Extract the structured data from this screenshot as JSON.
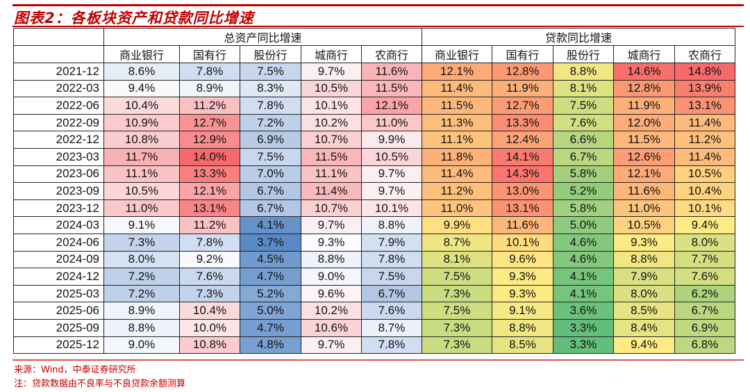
{
  "title": "图表2：各板块资产和贷款同比增速",
  "chart_data": {
    "type": "table",
    "title": "图表2：各板块资产和贷款同比增速",
    "groups": [
      "总资产同比增速",
      "贷款同比增速"
    ],
    "columns": [
      "商业银行",
      "国有行",
      "股份行",
      "城商行",
      "农商行"
    ],
    "rows": [
      "2021-12",
      "2022-03",
      "2022-06",
      "2022-09",
      "2022-12",
      "2023-03",
      "2023-06",
      "2023-09",
      "2023-12",
      "2024-03",
      "2024-06",
      "2024-09",
      "2024-12",
      "2025-03",
      "2025-06",
      "2025-09",
      "2025-12"
    ],
    "assets": [
      [
        8.6,
        7.8,
        7.5,
        9.7,
        11.6
      ],
      [
        9.4,
        8.9,
        8.3,
        10.5,
        11.5
      ],
      [
        10.4,
        11.2,
        7.8,
        10.1,
        12.1
      ],
      [
        10.9,
        12.7,
        7.2,
        10.2,
        11.0
      ],
      [
        10.8,
        12.9,
        6.9,
        10.7,
        9.9
      ],
      [
        11.7,
        14.0,
        7.5,
        11.5,
        10.5
      ],
      [
        11.1,
        13.3,
        7.0,
        11.1,
        9.7
      ],
      [
        10.5,
        12.1,
        6.7,
        11.4,
        9.7
      ],
      [
        11.0,
        13.1,
        6.7,
        10.7,
        10.1
      ],
      [
        9.1,
        11.2,
        4.1,
        9.7,
        8.8
      ],
      [
        7.3,
        7.8,
        3.7,
        9.3,
        7.9
      ],
      [
        8.0,
        9.2,
        4.5,
        8.8,
        7.8
      ],
      [
        7.2,
        7.6,
        4.7,
        9.0,
        7.5
      ],
      [
        7.2,
        7.3,
        5.2,
        9.6,
        6.7
      ],
      [
        8.9,
        10.4,
        5.0,
        10.2,
        7.6
      ],
      [
        8.8,
        10.0,
        4.7,
        10.6,
        8.7
      ],
      [
        9.0,
        10.8,
        4.8,
        9.7,
        7.8
      ]
    ],
    "loans": [
      [
        12.1,
        12.8,
        8.8,
        14.6,
        14.8
      ],
      [
        11.4,
        11.9,
        8.1,
        12.8,
        13.9
      ],
      [
        11.5,
        12.7,
        7.5,
        11.9,
        13.1
      ],
      [
        11.3,
        13.3,
        7.6,
        12.0,
        11.4
      ],
      [
        11.1,
        12.4,
        6.6,
        11.5,
        11.2
      ],
      [
        11.8,
        14.1,
        6.7,
        12.6,
        11.4
      ],
      [
        11.4,
        14.3,
        5.8,
        12.1,
        10.5
      ],
      [
        11.2,
        13.0,
        5.2,
        11.6,
        10.4
      ],
      [
        11.0,
        13.1,
        5.8,
        11.0,
        10.1
      ],
      [
        9.9,
        11.6,
        5.0,
        10.5,
        9.4
      ],
      [
        8.7,
        10.1,
        4.6,
        9.3,
        8.0
      ],
      [
        8.1,
        9.6,
        4.6,
        8.8,
        7.7
      ],
      [
        7.5,
        9.3,
        4.1,
        7.9,
        7.6
      ],
      [
        7.3,
        9.3,
        4.1,
        8.0,
        6.2
      ],
      [
        7.5,
        9.1,
        3.6,
        8.5,
        6.7
      ],
      [
        7.3,
        8.8,
        3.3,
        8.4,
        6.9
      ],
      [
        7.3,
        8.5,
        3.3,
        9.4,
        6.8
      ]
    ],
    "unit": "%",
    "colors": {
      "assets_low": "#5a8ac6",
      "assets_mid": "#fcfcff",
      "assets_high": "#f8696b",
      "loans_low": "#63be7b",
      "loans_mid": "#ffeb84",
      "loans_high": "#f8696b"
    }
  },
  "footer": {
    "source": "来源：Wind，中泰证券研究所",
    "note": "注：贷款数据由不良率与不良贷款余额测算"
  }
}
